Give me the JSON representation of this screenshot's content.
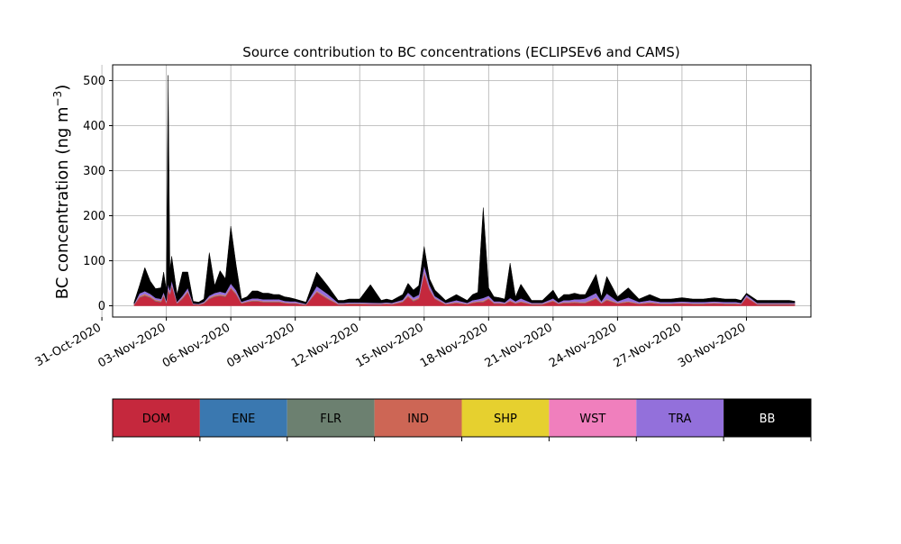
{
  "chart_data": {
    "type": "area",
    "stacked": true,
    "title": "Source contribution to BC concentrations (ECLIPSEv6 and CAMS)",
    "ylabel": "BC concentration (ng m",
    "ylabel_superscript": "−3",
    "ylabel_close": ")",
    "xlabel": "",
    "ylim": [
      -25,
      535
    ],
    "xlim": [
      "2020-10-31T12:00",
      "2020-12-03T00:00"
    ],
    "yticks": [
      0,
      100,
      200,
      300,
      400,
      500
    ],
    "xtick_labels": [
      "31-Oct-2020",
      "03-Nov-2020",
      "06-Nov-2020",
      "09-Nov-2020",
      "12-Nov-2020",
      "15-Nov-2020",
      "18-Nov-2020",
      "21-Nov-2020",
      "24-Nov-2020",
      "27-Nov-2020",
      "30-Nov-2020"
    ],
    "xtick_dates": [
      "2020-10-31",
      "2020-11-03",
      "2020-11-06",
      "2020-11-09",
      "2020-11-12",
      "2020-11-15",
      "2020-11-18",
      "2020-11-21",
      "2020-11-24",
      "2020-11-27",
      "2020-11-30"
    ],
    "grid": true,
    "x": [
      "2020-11-01T12:00",
      "2020-11-01T18:00",
      "2020-11-02T00:00",
      "2020-11-02T06:00",
      "2020-11-02T12:00",
      "2020-11-02T18:00",
      "2020-11-02T21:00",
      "2020-11-03T00:00",
      "2020-11-03T02:00",
      "2020-11-03T04:00",
      "2020-11-03T06:00",
      "2020-11-03T12:00",
      "2020-11-03T18:00",
      "2020-11-04T00:00",
      "2020-11-04T06:00",
      "2020-11-04T12:00",
      "2020-11-04T18:00",
      "2020-11-05T00:00",
      "2020-11-05T06:00",
      "2020-11-05T12:00",
      "2020-11-05T18:00",
      "2020-11-06T00:00",
      "2020-11-06T06:00",
      "2020-11-06T12:00",
      "2020-11-06T18:00",
      "2020-11-07T00:00",
      "2020-11-07T06:00",
      "2020-11-07T12:00",
      "2020-11-07T18:00",
      "2020-11-08T00:00",
      "2020-11-08T06:00",
      "2020-11-08T12:00",
      "2020-11-08T18:00",
      "2020-11-09T00:00",
      "2020-11-09T12:00",
      "2020-11-10T00:00",
      "2020-11-10T12:00",
      "2020-11-11T00:00",
      "2020-11-11T06:00",
      "2020-11-11T12:00",
      "2020-11-11T18:00",
      "2020-11-12T00:00",
      "2020-11-12T12:00",
      "2020-11-13T00:00",
      "2020-11-13T06:00",
      "2020-11-13T12:00",
      "2020-11-14T00:00",
      "2020-11-14T06:00",
      "2020-11-14T12:00",
      "2020-11-14T18:00",
      "2020-11-15T00:00",
      "2020-11-15T06:00",
      "2020-11-15T12:00",
      "2020-11-16T00:00",
      "2020-11-16T12:00",
      "2020-11-17T00:00",
      "2020-11-17T06:00",
      "2020-11-17T12:00",
      "2020-11-17T18:00",
      "2020-11-18T00:00",
      "2020-11-18T06:00",
      "2020-11-18T12:00",
      "2020-11-18T18:00",
      "2020-11-19T00:00",
      "2020-11-19T06:00",
      "2020-11-19T12:00",
      "2020-11-20T00:00",
      "2020-11-20T12:00",
      "2020-11-21T00:00",
      "2020-11-21T06:00",
      "2020-11-21T12:00",
      "2020-11-21T18:00",
      "2020-11-22T00:00",
      "2020-11-22T06:00",
      "2020-11-22T12:00",
      "2020-11-23T00:00",
      "2020-11-23T06:00",
      "2020-11-23T12:00",
      "2020-11-24T00:00",
      "2020-11-24T12:00",
      "2020-11-25T00:00",
      "2020-11-25T12:00",
      "2020-11-26T00:00",
      "2020-11-26T12:00",
      "2020-11-27T00:00",
      "2020-11-27T12:00",
      "2020-11-28T00:00",
      "2020-11-28T12:00",
      "2020-11-29T00:00",
      "2020-11-29T06:00",
      "2020-11-29T12:00",
      "2020-11-29T18:00",
      "2020-11-30T00:00",
      "2020-11-30T12:00",
      "2020-12-01T00:00",
      "2020-12-01T12:00",
      "2020-12-02T00:00",
      "2020-12-02T06:00"
    ],
    "total": [
      8,
      45,
      85,
      55,
      38,
      40,
      75,
      35,
      512,
      80,
      110,
      25,
      75,
      75,
      10,
      8,
      15,
      118,
      45,
      78,
      60,
      177,
      90,
      15,
      20,
      33,
      33,
      28,
      28,
      25,
      25,
      20,
      18,
      15,
      8,
      75,
      45,
      12,
      12,
      15,
      15,
      15,
      47,
      12,
      15,
      12,
      25,
      50,
      35,
      45,
      132,
      60,
      35,
      12,
      25,
      12,
      25,
      30,
      218,
      40,
      20,
      18,
      15,
      95,
      20,
      48,
      12,
      12,
      35,
      15,
      25,
      25,
      28,
      25,
      25,
      70,
      20,
      65,
      20,
      40,
      15,
      25,
      15,
      15,
      18,
      15,
      15,
      18,
      15,
      15,
      15,
      12,
      28,
      12,
      12,
      12,
      12,
      10
    ],
    "series": [
      {
        "name": "DOM",
        "color": "#c5283d",
        "values": [
          2,
          18,
          22,
          18,
          10,
          8,
          22,
          5,
          35,
          25,
          45,
          5,
          15,
          30,
          3,
          2,
          5,
          15,
          20,
          22,
          20,
          38,
          25,
          5,
          8,
          10,
          10,
          8,
          8,
          8,
          8,
          6,
          5,
          5,
          2,
          30,
          15,
          3,
          3,
          4,
          4,
          4,
          3,
          3,
          4,
          3,
          8,
          20,
          10,
          15,
          72,
          35,
          15,
          3,
          6,
          3,
          6,
          8,
          8,
          15,
          5,
          5,
          4,
          10,
          5,
          8,
          3,
          3,
          10,
          4,
          6,
          6,
          7,
          6,
          6,
          15,
          5,
          12,
          5,
          8,
          4,
          6,
          4,
          4,
          5,
          4,
          4,
          5,
          4,
          4,
          4,
          3,
          18,
          3,
          3,
          3,
          3,
          3
        ]
      },
      {
        "name": "ENE",
        "color": "#3a78b0",
        "values": [
          0.2,
          0.5,
          0.5,
          0.5,
          0.5,
          0.5,
          0.5,
          0.5,
          1,
          0.5,
          0.5,
          0.3,
          0.5,
          0.5,
          0.3,
          0.3,
          0.3,
          0.5,
          0.5,
          0.5,
          0.5,
          0.5,
          0.5,
          0.3,
          0.3,
          0.3,
          0.3,
          0.3,
          0.3,
          0.3,
          0.3,
          0.3,
          0.3,
          0.3,
          0.2,
          0.5,
          0.5,
          0.2,
          0.2,
          0.2,
          0.2,
          0.2,
          0.3,
          0.2,
          0.2,
          0.2,
          0.3,
          0.5,
          0.5,
          0.5,
          0.8,
          0.5,
          0.3,
          0.2,
          0.3,
          0.2,
          0.3,
          0.3,
          0.5,
          0.3,
          0.3,
          0.3,
          0.2,
          0.3,
          0.3,
          0.3,
          0.2,
          0.2,
          0.3,
          0.2,
          0.3,
          0.3,
          0.3,
          0.3,
          0.3,
          0.5,
          0.3,
          0.5,
          0.3,
          0.3,
          0.2,
          0.3,
          0.2,
          0.2,
          0.2,
          0.2,
          0.2,
          0.2,
          0.2,
          0.2,
          0.2,
          0.2,
          0.3,
          0.2,
          0.2,
          0.2,
          0.2,
          0.2
        ]
      },
      {
        "name": "FLR",
        "color": "#6c8070",
        "values": [
          0.2,
          0.3,
          0.3,
          0.3,
          0.3,
          0.3,
          0.3,
          0.3,
          0.5,
          0.3,
          0.3,
          0.2,
          0.3,
          0.3,
          0.2,
          0.2,
          0.2,
          0.3,
          0.3,
          0.3,
          0.3,
          0.3,
          0.3,
          0.2,
          0.2,
          0.2,
          0.2,
          0.2,
          0.2,
          0.2,
          0.2,
          0.2,
          0.2,
          0.2,
          0.1,
          0.3,
          0.3,
          0.1,
          0.1,
          0.1,
          0.1,
          0.1,
          0.2,
          0.1,
          0.1,
          0.1,
          0.2,
          0.3,
          0.3,
          0.3,
          0.5,
          0.3,
          0.2,
          0.1,
          0.2,
          0.1,
          0.2,
          0.2,
          0.3,
          0.2,
          0.2,
          0.2,
          0.1,
          0.2,
          0.2,
          0.2,
          0.1,
          0.1,
          0.2,
          0.1,
          0.2,
          0.2,
          0.2,
          0.2,
          0.2,
          0.3,
          0.2,
          0.3,
          0.2,
          0.2,
          0.1,
          0.2,
          0.1,
          0.1,
          0.1,
          0.1,
          0.1,
          0.1,
          0.1,
          0.1,
          0.1,
          0.1,
          0.2,
          0.1,
          0.1,
          0.1,
          0.1,
          0.1
        ]
      },
      {
        "name": "IND",
        "color": "#cd6655",
        "values": [
          0.5,
          2,
          3,
          2,
          2,
          2,
          2,
          2,
          3,
          2,
          2,
          1,
          2,
          2,
          0.5,
          0.5,
          1,
          2,
          2,
          2,
          2,
          2,
          2,
          1,
          1,
          1.5,
          1.5,
          1.5,
          1.5,
          1.5,
          1.5,
          1,
          1,
          1,
          0.5,
          2,
          2,
          1,
          1,
          1,
          1,
          1,
          1,
          1,
          1,
          1,
          1.5,
          2,
          2,
          2,
          3,
          2,
          1.5,
          1,
          1.5,
          1,
          1.5,
          1.5,
          2,
          1.5,
          1,
          1,
          1,
          1.5,
          1,
          1.5,
          1,
          1,
          1.5,
          1,
          1.5,
          1.5,
          1.5,
          1.5,
          1.5,
          2,
          1,
          2,
          1,
          1.5,
          1,
          1.5,
          1,
          1,
          1,
          1,
          1,
          1,
          1,
          1,
          1,
          1,
          1.5,
          1,
          1,
          1,
          1,
          1
        ]
      },
      {
        "name": "SHP",
        "color": "#e6d02f",
        "values": [
          0.1,
          0.2,
          0.2,
          0.2,
          0.2,
          0.2,
          0.2,
          0.2,
          0.3,
          0.2,
          0.2,
          0.1,
          0.2,
          0.2,
          0.1,
          0.1,
          0.1,
          0.2,
          0.2,
          0.2,
          0.2,
          0.2,
          0.2,
          0.1,
          0.1,
          0.1,
          0.1,
          0.1,
          0.1,
          0.1,
          0.1,
          0.1,
          0.1,
          0.1,
          0.1,
          0.2,
          0.2,
          0.1,
          0.1,
          0.1,
          0.1,
          0.1,
          0.1,
          0.1,
          0.1,
          0.1,
          0.1,
          0.2,
          0.2,
          0.2,
          0.3,
          0.2,
          0.1,
          0.1,
          0.1,
          0.1,
          0.1,
          0.1,
          0.2,
          0.1,
          0.1,
          0.1,
          0.1,
          0.1,
          0.1,
          0.1,
          0.1,
          0.1,
          0.1,
          0.1,
          0.1,
          0.1,
          0.1,
          0.1,
          0.1,
          0.2,
          0.1,
          0.2,
          0.1,
          0.1,
          0.1,
          0.1,
          0.1,
          0.1,
          0.1,
          0.1,
          0.1,
          0.1,
          0.1,
          0.1,
          0.1,
          0.1,
          0.1,
          0.1,
          0.1,
          0.1,
          0.1,
          0.1
        ]
      },
      {
        "name": "WST",
        "color": "#f07fbd",
        "values": [
          0.2,
          0.5,
          0.5,
          0.5,
          0.5,
          0.5,
          0.5,
          0.5,
          0.8,
          0.5,
          0.5,
          0.3,
          0.5,
          0.5,
          0.2,
          0.2,
          0.3,
          0.5,
          0.5,
          0.5,
          0.5,
          0.5,
          0.5,
          0.3,
          0.3,
          0.3,
          0.3,
          0.3,
          0.3,
          0.3,
          0.3,
          0.3,
          0.3,
          0.3,
          0.2,
          0.5,
          0.5,
          0.2,
          0.2,
          0.2,
          0.2,
          0.2,
          0.3,
          0.2,
          0.2,
          0.2,
          0.3,
          0.5,
          0.5,
          0.5,
          0.8,
          0.5,
          0.3,
          0.2,
          0.3,
          0.2,
          0.3,
          0.3,
          0.5,
          0.3,
          0.3,
          0.3,
          0.2,
          0.3,
          0.3,
          0.3,
          0.2,
          0.2,
          0.3,
          0.2,
          0.3,
          0.3,
          0.3,
          0.3,
          0.3,
          0.5,
          0.3,
          0.5,
          0.3,
          0.3,
          0.2,
          0.3,
          0.2,
          0.2,
          0.2,
          0.2,
          0.2,
          0.2,
          0.2,
          0.2,
          0.2,
          0.2,
          0.3,
          0.2,
          0.2,
          0.2,
          0.2,
          0.2
        ]
      },
      {
        "name": "TRA",
        "color": "#9370db",
        "values": [
          1,
          6,
          6,
          5,
          4,
          4,
          5,
          3,
          8,
          6,
          8,
          2,
          4,
          6,
          1,
          1,
          2,
          4,
          5,
          6,
          5,
          8,
          6,
          2,
          3,
          4,
          4,
          4,
          4,
          4,
          4,
          3,
          3,
          3,
          1,
          10,
          8,
          2,
          2,
          2,
          2,
          2,
          2,
          2,
          2,
          2,
          3,
          6,
          5,
          6,
          12,
          8,
          4,
          2,
          4,
          2,
          4,
          4,
          6,
          5,
          3,
          3,
          2,
          5,
          3,
          6,
          2,
          2,
          4,
          2,
          4,
          4,
          5,
          6,
          8,
          10,
          3,
          12,
          3,
          8,
          3,
          4,
          3,
          3,
          3,
          3,
          3,
          3,
          3,
          3,
          3,
          2,
          4,
          2,
          2,
          2,
          2,
          2
        ]
      },
      {
        "name": "BB",
        "color": "#000000",
        "values": "remainder to total"
      }
    ]
  },
  "legend": {
    "items": [
      {
        "label": "DOM",
        "color": "#c5283d",
        "text_color": "#000000"
      },
      {
        "label": "ENE",
        "color": "#3a78b0",
        "text_color": "#000000"
      },
      {
        "label": "FLR",
        "color": "#6c8070",
        "text_color": "#000000"
      },
      {
        "label": "IND",
        "color": "#cd6655",
        "text_color": "#000000"
      },
      {
        "label": "SHP",
        "color": "#e6d02f",
        "text_color": "#000000"
      },
      {
        "label": "WST",
        "color": "#f07fbd",
        "text_color": "#000000"
      },
      {
        "label": "TRA",
        "color": "#9370db",
        "text_color": "#000000"
      },
      {
        "label": "BB",
        "color": "#000000",
        "text_color": "#ffffff"
      }
    ]
  }
}
